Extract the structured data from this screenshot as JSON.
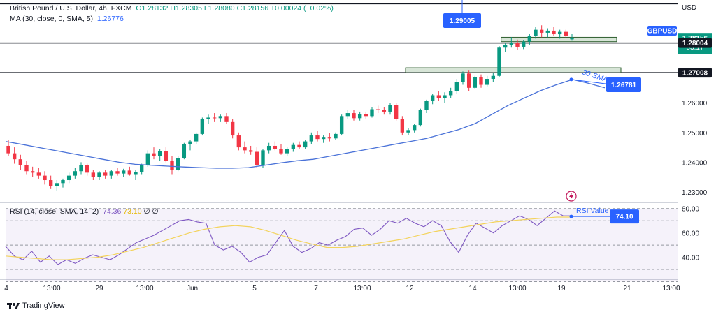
{
  "legend": {
    "title": "British Pound / U.S. Dollar, 4h, FXCM",
    "o": "O1.28132",
    "h": "H1.28305",
    "l": "L1.28080",
    "c": "C1.28156",
    "change": "+0.00024 (+0.02%)",
    "ma_label": "MA (30, close, 0, SMA, 5)",
    "ma_value": "1.26776",
    "rsi_label": "RSI (14, close, SMA, 14, 2)",
    "rsi_value": "74.36",
    "rsi_ma_value": "73.10",
    "rsi_extra": "∅ ∅"
  },
  "price_axis": {
    "currency": "USD",
    "ticks": [
      "1.23000",
      "1.24000",
      "1.25000",
      "1.26000"
    ],
    "symbol_tag": "GBPUSD",
    "last_price": "1.28156",
    "countdown": "03:17",
    "level_1": "1.28004",
    "level_2": "1.27008"
  },
  "rsi_axis": {
    "ticks": [
      "80.00",
      "60.00",
      "40.00"
    ]
  },
  "time_axis": {
    "labels": [
      "4",
      "13:00",
      "29",
      "13:00",
      "Jun",
      "5",
      "7",
      "13:00",
      "12",
      "14",
      "13:00",
      "19",
      "21",
      "13:00"
    ]
  },
  "annotations": {
    "top_level": "1.29005",
    "sma_callout": "1.26781",
    "sma_text": "30-SMA",
    "rsi_text": "RSI Value",
    "rsi_callout": "74.10"
  },
  "brand": "TradingView",
  "colors": {
    "up": "#089981",
    "down": "#f23645",
    "ma": "#4a72d8",
    "rsi": "#7e57c2",
    "rsi_ma": "#f3d35c",
    "callout": "#2962ff"
  },
  "chart_data": [
    {
      "type": "candlestick",
      "title": "British Pound / U.S. Dollar, 4h, FXCM",
      "ylim": [
        1.2265,
        1.2945
      ],
      "x": [
        "4",
        "13:00",
        "29",
        "13:00",
        "Jun",
        "5",
        "7",
        "13:00",
        "12",
        "14",
        "13:00",
        "19",
        "21",
        "13:00"
      ],
      "candles": [
        [
          1.2455,
          1.2475,
          1.242,
          1.243
        ],
        [
          1.243,
          1.245,
          1.2395,
          1.241
        ],
        [
          1.241,
          1.2425,
          1.2375,
          1.239
        ],
        [
          1.239,
          1.2405,
          1.236,
          1.237
        ],
        [
          1.237,
          1.2385,
          1.235,
          1.2365
        ],
        [
          1.2365,
          1.238,
          1.2345,
          1.2355
        ],
        [
          1.2355,
          1.237,
          1.2325,
          1.234
        ],
        [
          1.234,
          1.2355,
          1.231,
          1.232
        ],
        [
          1.232,
          1.234,
          1.2305,
          1.233
        ],
        [
          1.233,
          1.2345,
          1.2315,
          1.234
        ],
        [
          1.234,
          1.2365,
          1.233,
          1.2355
        ],
        [
          1.2355,
          1.238,
          1.2345,
          1.237
        ],
        [
          1.237,
          1.24,
          1.236,
          1.239
        ],
        [
          1.239,
          1.2395,
          1.2355,
          1.2365
        ],
        [
          1.2365,
          1.2375,
          1.234,
          1.235
        ],
        [
          1.235,
          1.237,
          1.234,
          1.2365
        ],
        [
          1.2365,
          1.2375,
          1.2345,
          1.2355
        ],
        [
          1.2355,
          1.2375,
          1.2345,
          1.237
        ],
        [
          1.237,
          1.238,
          1.2355,
          1.2362
        ],
        [
          1.2362,
          1.2378,
          1.235,
          1.2372
        ],
        [
          1.2372,
          1.2385,
          1.2355,
          1.236
        ],
        [
          1.236,
          1.2375,
          1.234,
          1.2368
        ],
        [
          1.2368,
          1.2395,
          1.236,
          1.239
        ],
        [
          1.239,
          1.244,
          1.2385,
          1.243
        ],
        [
          1.243,
          1.245,
          1.241,
          1.242
        ],
        [
          1.242,
          1.2445,
          1.2405,
          1.2438
        ],
        [
          1.2438,
          1.245,
          1.24,
          1.2405
        ],
        [
          1.2405,
          1.242,
          1.236,
          1.2375
        ],
        [
          1.2375,
          1.242,
          1.237,
          1.2415
        ],
        [
          1.2415,
          1.2465,
          1.241,
          1.246
        ],
        [
          1.246,
          1.2475,
          1.244,
          1.247
        ],
        [
          1.247,
          1.25,
          1.246,
          1.2495
        ],
        [
          1.2495,
          1.255,
          1.249,
          1.2545
        ],
        [
          1.2545,
          1.256,
          1.253,
          1.255
        ],
        [
          1.255,
          1.2565,
          1.2535,
          1.2548
        ],
        [
          1.2548,
          1.256,
          1.2535,
          1.2555
        ],
        [
          1.2555,
          1.2565,
          1.253,
          1.2535
        ],
        [
          1.2535,
          1.2545,
          1.248,
          1.249
        ],
        [
          1.249,
          1.25,
          1.244,
          1.245
        ],
        [
          1.245,
          1.247,
          1.243,
          1.244
        ],
        [
          1.244,
          1.2455,
          1.2425,
          1.2435
        ],
        [
          1.2435,
          1.245,
          1.238,
          1.239
        ],
        [
          1.239,
          1.2445,
          1.238,
          1.244
        ],
        [
          1.244,
          1.2465,
          1.243,
          1.2455
        ],
        [
          1.2455,
          1.247,
          1.244,
          1.2445
        ],
        [
          1.2445,
          1.246,
          1.2425,
          1.243
        ],
        [
          1.243,
          1.245,
          1.242,
          1.2445
        ],
        [
          1.2445,
          1.2465,
          1.2435,
          1.2458
        ],
        [
          1.2458,
          1.247,
          1.2445,
          1.245
        ],
        [
          1.245,
          1.2475,
          1.2445,
          1.247
        ],
        [
          1.247,
          1.25,
          1.246,
          1.249
        ],
        [
          1.249,
          1.2505,
          1.247,
          1.2478
        ],
        [
          1.2478,
          1.249,
          1.2465,
          1.2485
        ],
        [
          1.2485,
          1.2498,
          1.247,
          1.248
        ],
        [
          1.248,
          1.25,
          1.2475,
          1.2495
        ],
        [
          1.2495,
          1.256,
          1.249,
          1.2555
        ],
        [
          1.2555,
          1.2575,
          1.2545,
          1.2565
        ],
        [
          1.2565,
          1.2575,
          1.254,
          1.2548
        ],
        [
          1.2548,
          1.257,
          1.254,
          1.2562
        ],
        [
          1.2562,
          1.257,
          1.2545,
          1.2555
        ],
        [
          1.2555,
          1.2585,
          1.255,
          1.2578
        ],
        [
          1.2578,
          1.259,
          1.2565,
          1.2575
        ],
        [
          1.2575,
          1.2585,
          1.256,
          1.257
        ],
        [
          1.257,
          1.26,
          1.256,
          1.2592
        ],
        [
          1.2592,
          1.26,
          1.254,
          1.2545
        ],
        [
          1.2545,
          1.2555,
          1.249,
          1.25
        ],
        [
          1.25,
          1.2515,
          1.249,
          1.2508
        ],
        [
          1.2508,
          1.253,
          1.25,
          1.2525
        ],
        [
          1.2525,
          1.258,
          1.252,
          1.2575
        ],
        [
          1.2575,
          1.261,
          1.2565,
          1.2605
        ],
        [
          1.2605,
          1.263,
          1.2595,
          1.2625
        ],
        [
          1.2625,
          1.264,
          1.2605,
          1.2615
        ],
        [
          1.2615,
          1.2635,
          1.26,
          1.2625
        ],
        [
          1.2625,
          1.265,
          1.2615,
          1.264
        ],
        [
          1.264,
          1.268,
          1.263,
          1.267
        ],
        [
          1.267,
          1.2705,
          1.266,
          1.2698
        ],
        [
          1.2698,
          1.271,
          1.264,
          1.265
        ],
        [
          1.265,
          1.269,
          1.2645,
          1.2685
        ],
        [
          1.2685,
          1.2695,
          1.265,
          1.266
        ],
        [
          1.266,
          1.269,
          1.2655,
          1.268
        ],
        [
          1.268,
          1.27,
          1.267,
          1.269
        ],
        [
          1.269,
          1.279,
          1.2685,
          1.2785
        ],
        [
          1.2785,
          1.28,
          1.277,
          1.2795
        ],
        [
          1.2795,
          1.282,
          1.2785,
          1.28
        ],
        [
          1.28,
          1.2812,
          1.2778,
          1.2788
        ],
        [
          1.2788,
          1.281,
          1.278,
          1.2805
        ],
        [
          1.2805,
          1.283,
          1.2795,
          1.2825
        ],
        [
          1.2825,
          1.2855,
          1.2815,
          1.2845
        ],
        [
          1.2845,
          1.286,
          1.282,
          1.2835
        ],
        [
          1.2835,
          1.285,
          1.282,
          1.2842
        ],
        [
          1.2842,
          1.2855,
          1.2825,
          1.283
        ],
        [
          1.283,
          1.2845,
          1.2815,
          1.2838
        ],
        [
          1.2838,
          1.2845,
          1.2818,
          1.2825
        ],
        [
          1.2813,
          1.2831,
          1.2808,
          1.2816
        ]
      ],
      "ma_30": [
        1.247,
        1.246,
        1.245,
        1.244,
        1.243,
        1.242,
        1.241,
        1.24,
        1.2393,
        1.239,
        1.2387,
        1.2384,
        1.2382,
        1.238,
        1.238,
        1.2382,
        1.239,
        1.2398,
        1.2405,
        1.241,
        1.242,
        1.243,
        1.244,
        1.245,
        1.246,
        1.247,
        1.248,
        1.2495,
        1.251,
        1.253,
        1.256,
        1.259,
        1.2615,
        1.264,
        1.266,
        1.2678,
        1.2665,
        1.265
      ],
      "rsi": {
        "ylim": [
          22,
          85
        ],
        "values": [
          49,
          41,
          38,
          45,
          36,
          41,
          34,
          38,
          35,
          39,
          42,
          40,
          38,
          42,
          47,
          52,
          55,
          58,
          62,
          66,
          70,
          71,
          69,
          68,
          50,
          46,
          49,
          44,
          36,
          40,
          42,
          52,
          62,
          49,
          44,
          47,
          52,
          50,
          54,
          57,
          63,
          64,
          58,
          63,
          70,
          68,
          72,
          68,
          65,
          70,
          66,
          53,
          44,
          58,
          68,
          64,
          60,
          66,
          70,
          74,
          71,
          66,
          72,
          78,
          74,
          74
        ],
        "ma": [
          41,
          40,
          39,
          38,
          38,
          39,
          40,
          42,
          45,
          48,
          52,
          56,
          60,
          63,
          65,
          66,
          65,
          62,
          58,
          54,
          51,
          48,
          48,
          49,
          51,
          53,
          55,
          58,
          61,
          63,
          65,
          67,
          69,
          70,
          71,
          72,
          73,
          73
        ]
      }
    }
  ]
}
